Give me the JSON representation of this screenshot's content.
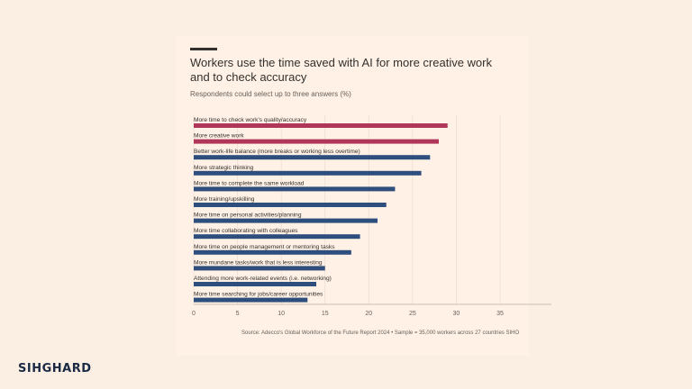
{
  "title": "Workers use the time saved with AI for more creative work and to check accuracy",
  "subtitle": "Respondents could select up to three answers (%)",
  "source": "Source: Adecco's Global Workforce of the Future Report 2024 • Sample = 35,000 workers across 27 countries",
  "source_tag": "SIHO",
  "logo": "SIHGHARD",
  "colors": {
    "highlight": "#b0375a",
    "base": "#2e4f7e",
    "background": "#fff1e5",
    "grid": "#e6d9ce"
  },
  "chart_data": {
    "type": "bar",
    "orientation": "horizontal",
    "categories": [
      "More time to check work's quality/accuracy",
      "More creative work",
      "Better work-life balance (more breaks or working less overtime)",
      "More strategic thinking",
      "More time to complete the same workload",
      "More training/upskilling",
      "More time on personal activities/planning",
      "More time collaborating with colleagues",
      "More time on people management or mentoring tasks",
      "More mundane tasks/work that is less interesting",
      "Attending more work-related events (i.e. networking)",
      "More time searching for jobs/career opportunities"
    ],
    "values": [
      29,
      28,
      27,
      26,
      23,
      22,
      21,
      19,
      18,
      15,
      14,
      13
    ],
    "highlighted": [
      0,
      1
    ],
    "xlim": [
      0,
      35
    ],
    "xticks": [
      0,
      5,
      10,
      15,
      20,
      25,
      30,
      35
    ],
    "xlabel": "",
    "ylabel": "",
    "grid": true
  }
}
